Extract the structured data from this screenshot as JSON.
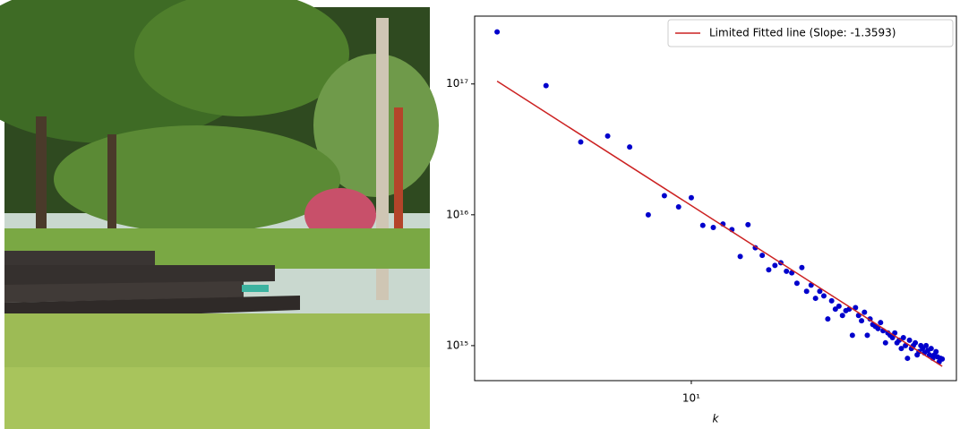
{
  "chart_data": {
    "type": "scatter",
    "xscale": "log",
    "yscale": "log",
    "xlabel": "k",
    "xlim": [
      1.66,
      90
    ],
    "ylim": [
      540000000000000.0,
      3.3e+17
    ],
    "xticks": [
      {
        "value": 10,
        "label": "10¹"
      }
    ],
    "yticks": [
      {
        "value": 1000000000000000.0,
        "label": "10¹⁵"
      },
      {
        "value": 1e+16,
        "label": "10¹⁶"
      },
      {
        "value": 1e+17,
        "label": "10¹⁷"
      }
    ],
    "legend": "upper right",
    "color": "#0000cc",
    "x": [
      2,
      3,
      4,
      5,
      6,
      7,
      8,
      9,
      10,
      11,
      12,
      13,
      14,
      15,
      16,
      17,
      18,
      19,
      20,
      21,
      22,
      23,
      24,
      25,
      26,
      27,
      28,
      29,
      30,
      31,
      32,
      33,
      34,
      35,
      36,
      37,
      38,
      39,
      40,
      41,
      42,
      43,
      44,
      45,
      46,
      47,
      48,
      49,
      50,
      51,
      52,
      53,
      54,
      55,
      56,
      57,
      58,
      59,
      60,
      61,
      62,
      63,
      64,
      65,
      66,
      67,
      68,
      69,
      70,
      71,
      72,
      73,
      74,
      75,
      76,
      77,
      78,
      79,
      80
    ],
    "values": [
      2.5e+17,
      9.7e+16,
      3.6e+16,
      4e+16,
      3.3e+16,
      1e+16,
      1.4e+16,
      1.15e+16,
      1.35e+16,
      8300000000000000.0,
      8000000000000000.0,
      8500000000000000.0,
      7700000000000000.0,
      4800000000000000.0,
      8400000000000000.0,
      5600000000000000.0,
      4900000000000000.0,
      3800000000000000.0,
      4100000000000000.0,
      4300000000000000.0,
      3700000000000000.0,
      3600000000000000.0,
      3000000000000000.0,
      3950000000000000.0,
      2600000000000000.0,
      2900000000000000.0,
      2300000000000000.0,
      2600000000000000.0,
      2400000000000000.0,
      1600000000000000.0,
      2200000000000000.0,
      1900000000000000.0,
      2000000000000000.0,
      1700000000000000.0,
      1850000000000000.0,
      1900000000000000.0,
      1200000000000000.0,
      1950000000000000.0,
      1700000000000000.0,
      1550000000000000.0,
      1800000000000000.0,
      1200000000000000.0,
      1600000000000000.0,
      1450000000000000.0,
      1400000000000000.0,
      1350000000000000.0,
      1500000000000000.0,
      1300000000000000.0,
      1050000000000000.0,
      1250000000000000.0,
      1200000000000000.0,
      1150000000000000.0,
      1250000000000000.0,
      1050000000000000.0,
      1100000000000000.0,
      950000000000000.0,
      1150000000000000.0,
      1000000000000000.0,
      800000000000000.0,
      1100000000000000.0,
      950000000000000.0,
      1000000000000000.0,
      1050000000000000.0,
      850000000000000.0,
      900000000000000.0,
      1000000000000000.0,
      950000000000000.0,
      880000000000000.0,
      1000000000000000.0,
      920000000000000.0,
      850000000000000.0,
      950000000000000.0,
      800000000000000.0,
      850000000000000.0,
      900000000000000.0,
      820000000000000.0,
      750000000000000.0,
      800000000000000.0,
      790000000000000.0
    ],
    "fit": {
      "name": "Limited Fitted line (Slope: -1.3593)",
      "color": "#cc2222",
      "x": [
        2,
        80
      ],
      "values": [
        1.05e+17,
        695000000000000.0
      ]
    }
  }
}
